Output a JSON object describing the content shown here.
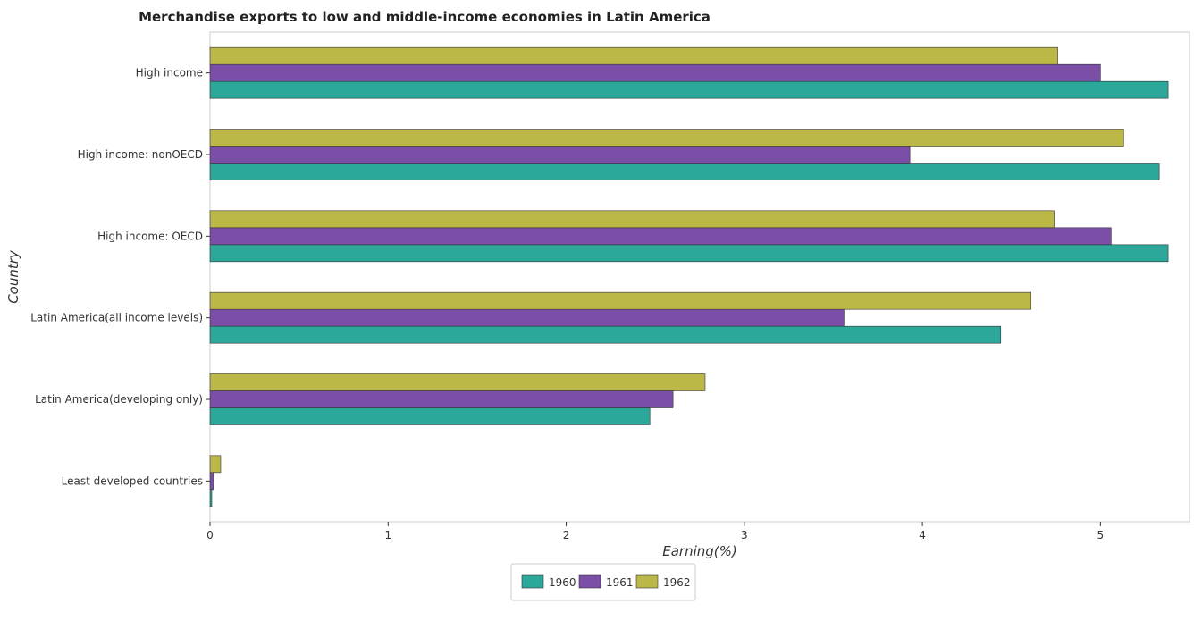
{
  "chart_data": {
    "type": "bar",
    "orientation": "horizontal",
    "title": "Merchandise exports to low and middle-income economies in Latin America",
    "xlabel": "Earning(%)",
    "ylabel": "Country",
    "xlim": [
      0,
      5.5
    ],
    "x_ticks": [
      "0",
      "1",
      "2",
      "3",
      "4",
      "5"
    ],
    "grid": false,
    "legend_position": "bottom-center",
    "categories": [
      "High income",
      "High income: nonOECD",
      "High income: OECD",
      "Latin America(all income levels)",
      "Latin America(developing only)",
      "Least developed countries"
    ],
    "series": [
      {
        "name": "1960",
        "color": "#2ca89a",
        "values": [
          5.38,
          5.33,
          5.38,
          4.44,
          2.47,
          0.01
        ]
      },
      {
        "name": "1961",
        "color": "#7b4fa8",
        "values": [
          5.0,
          3.93,
          5.06,
          3.56,
          2.6,
          0.02
        ]
      },
      {
        "name": "1962",
        "color": "#bcb848",
        "values": [
          4.76,
          5.13,
          4.74,
          4.61,
          2.78,
          0.06
        ]
      }
    ]
  }
}
